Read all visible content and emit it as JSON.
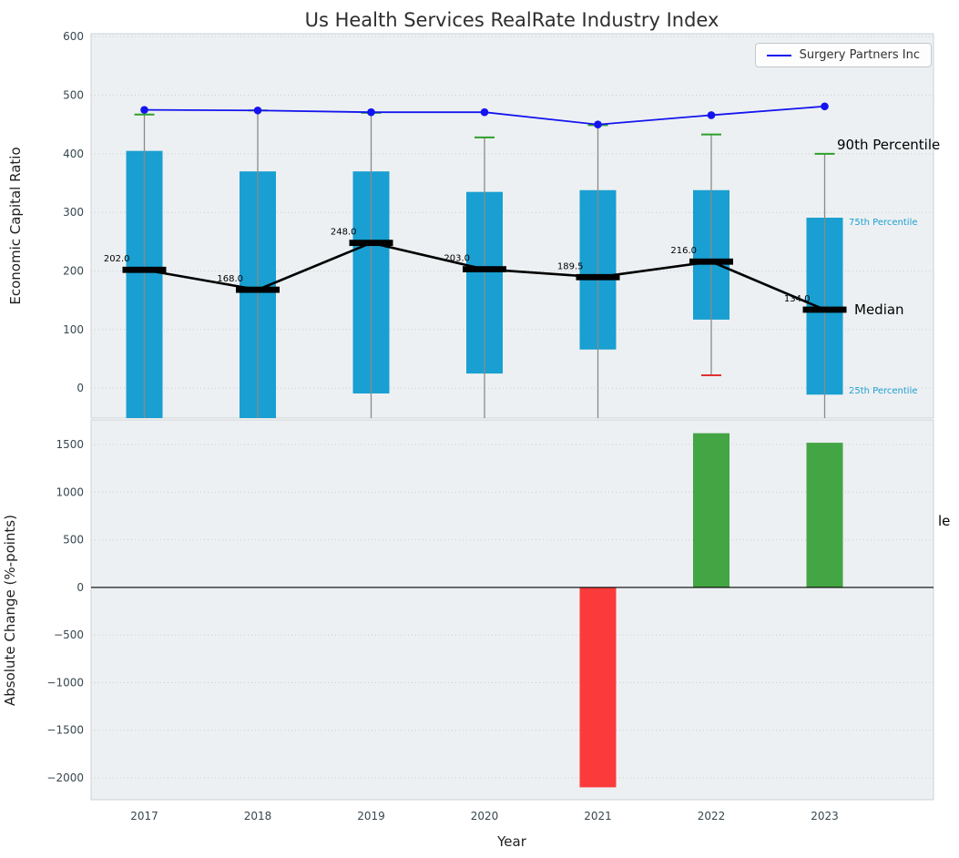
{
  "chart_data": [
    {
      "type": "box-whisker+line",
      "title": "Us Health Services RealRate Industry Index",
      "ylabel": "Economic Capital Ratio",
      "ylim": [
        -51,
        605
      ],
      "yticks": [
        0,
        100,
        200,
        300,
        400,
        500,
        600
      ],
      "grid": "dotted horizontal",
      "legend_position": "upper right",
      "categories": [
        "2017",
        "2018",
        "2019",
        "2020",
        "2021",
        "2022",
        "2023"
      ],
      "series": [
        {
          "name": "Surgery Partners Inc",
          "type": "line+markers",
          "color": "#1414ef",
          "values": [
            475,
            474,
            471,
            471,
            450,
            466,
            481
          ]
        },
        {
          "name": "Median",
          "type": "line+dash-markers",
          "color": "#000000",
          "values": [
            202,
            168,
            248,
            203,
            189.5,
            216,
            134
          ],
          "value_labels": [
            "202.0",
            "168.0",
            "248.0",
            "203.0",
            "189.5",
            "216.0",
            "134.0"
          ]
        }
      ],
      "boxes": {
        "color": "#199fd1",
        "whisker_color": "#8a8a8a",
        "cap_high_color": "#2ca02c",
        "cap_low_color": "#e03131",
        "p75": [
          405,
          370,
          370,
          335,
          338,
          338,
          291
        ],
        "p25": [
          null,
          null,
          -9,
          25,
          66,
          117,
          -11
        ],
        "p90": [
          467,
          474,
          470,
          428,
          449,
          433,
          400
        ],
        "p10": [
          null,
          null,
          null,
          null,
          null,
          22,
          null
        ]
      }
    },
    {
      "type": "bar",
      "ylabel": "Absolute Change (%-points)",
      "xlabel": "Year",
      "ylim": [
        -2230,
        1760
      ],
      "yticks": [
        {
          "v": 1500,
          "label": "1500"
        },
        {
          "v": 1000,
          "label": "1000"
        },
        {
          "v": 500,
          "label": "500"
        },
        {
          "v": 0,
          "label": "0"
        },
        {
          "v": -500,
          "label": "−500"
        },
        {
          "v": -1000,
          "label": "−1000"
        },
        {
          "v": -1500,
          "label": "−1500"
        },
        {
          "v": -2000,
          "label": "−2000"
        }
      ],
      "categories": [
        "2017",
        "2018",
        "2019",
        "2020",
        "2021",
        "2022",
        "2023"
      ],
      "values": [
        0,
        0,
        0,
        0,
        -2100,
        1620,
        1520
      ],
      "positive_color": "#44a544",
      "negative_color": "#fb3b3b"
    }
  ],
  "percentile_labels": {
    "p90": "90th Percentile",
    "p75": "75th Percentile",
    "median": "Median",
    "p25": "25th Percentile",
    "clipped_fragment": "le"
  },
  "colors": {
    "percentile_small_label": "#1a9fd3"
  }
}
